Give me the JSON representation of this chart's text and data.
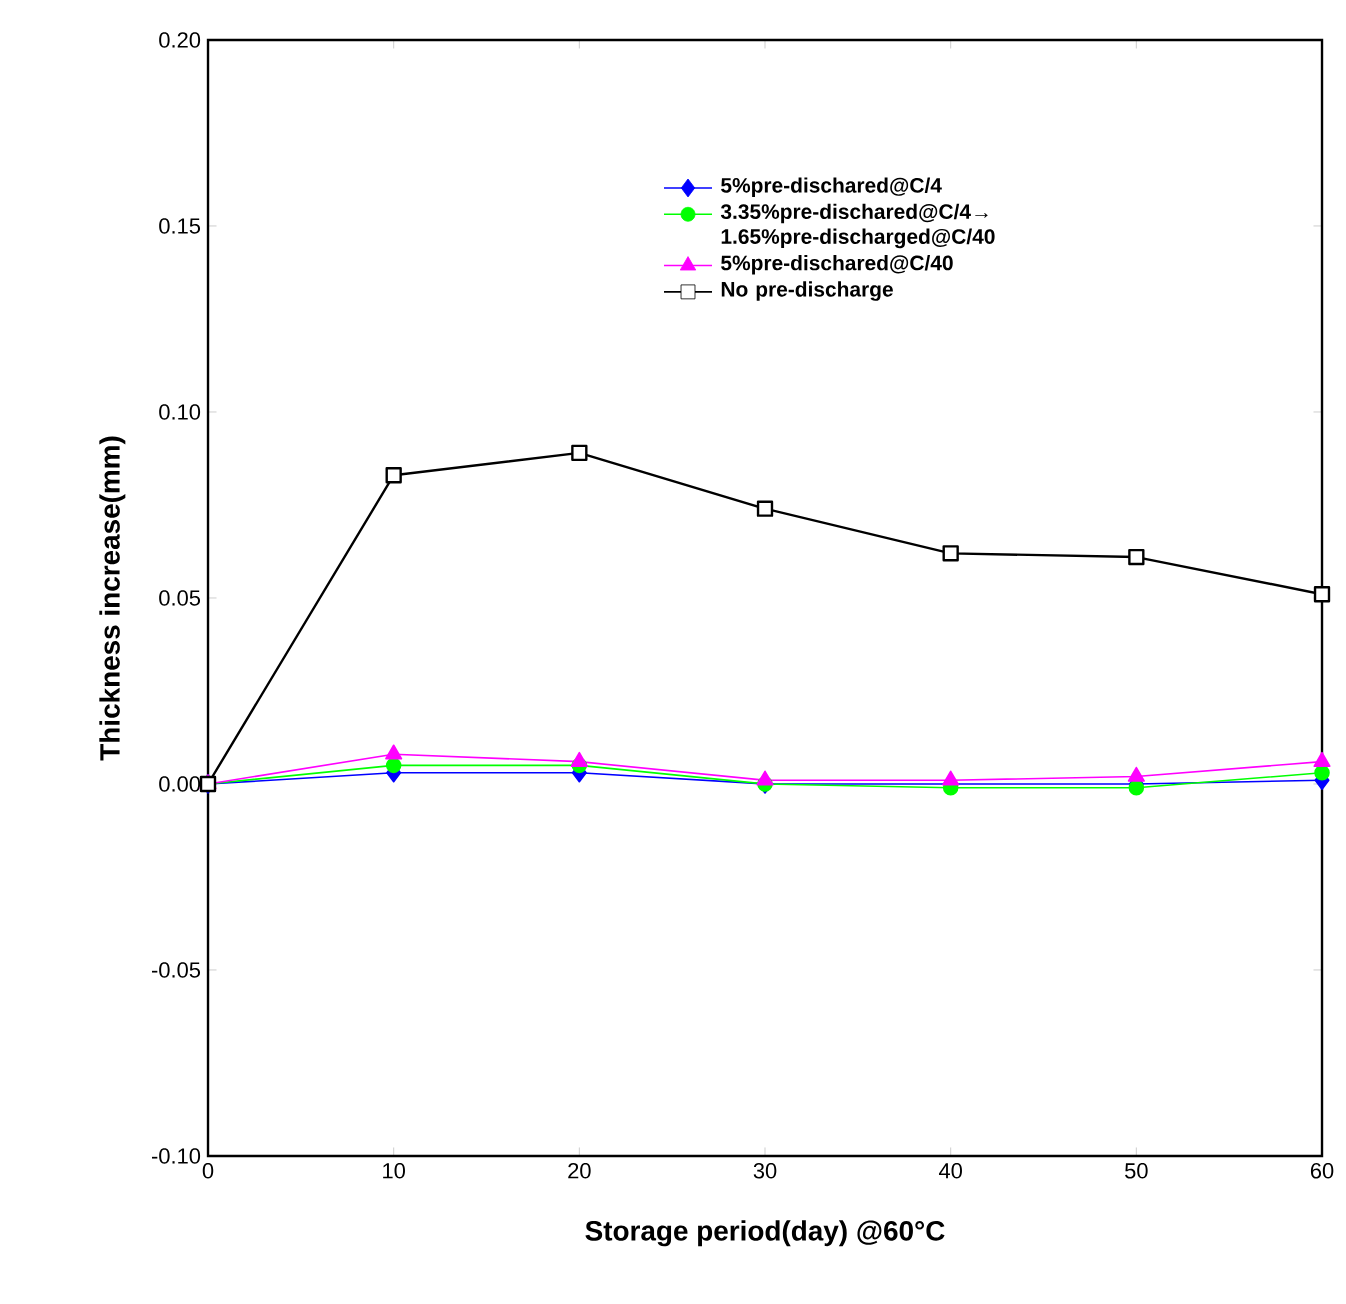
{
  "chart_data": {
    "type": "line",
    "xlabel": "Storage period(day) @60°C",
    "ylabel": "Thickness increase(mm)",
    "x": [
      0,
      10,
      20,
      30,
      40,
      50,
      60
    ],
    "series": [
      {
        "name": "5%pre-dischared@C/4",
        "color": "#0000ff",
        "marker": "diamond",
        "values": [
          0,
          0.003,
          0.003,
          0,
          0,
          0,
          0.001
        ]
      },
      {
        "name": "3.35%pre-dischared@C/4→ 1.65%pre-discharged@C/40",
        "color": "#00ff00",
        "marker": "circle",
        "values": [
          0,
          0.005,
          0.005,
          0,
          -0.001,
          -0.001,
          0.003
        ]
      },
      {
        "name": "5%pre-dischared@C/40",
        "color": "#ff00ff",
        "marker": "triangle",
        "values": [
          0,
          0.008,
          0.006,
          0.001,
          0.001,
          0.002,
          0.006
        ]
      },
      {
        "name": "No pre-discharge",
        "color": "#000000",
        "marker": "square",
        "values": [
          0,
          0.083,
          0.089,
          0.074,
          0.062,
          0.061,
          0.051
        ]
      }
    ],
    "xlim": [
      0,
      60
    ],
    "xticks": [
      0,
      10,
      20,
      30,
      40,
      50,
      60
    ],
    "ylim": [
      -0.1,
      0.2
    ],
    "yticks": [
      {
        "value": -0.1,
        "label": "-0.10"
      },
      {
        "value": -0.05,
        "label": "-0.05"
      },
      {
        "value": 0,
        "label": "0.00"
      },
      {
        "value": 0.05,
        "label": "0.05"
      },
      {
        "value": 0.1,
        "label": "0.10"
      },
      {
        "value": 0.15,
        "label": "0.15"
      },
      {
        "value": 0.2,
        "label": "0.20"
      }
    ],
    "legend": "top right"
  }
}
